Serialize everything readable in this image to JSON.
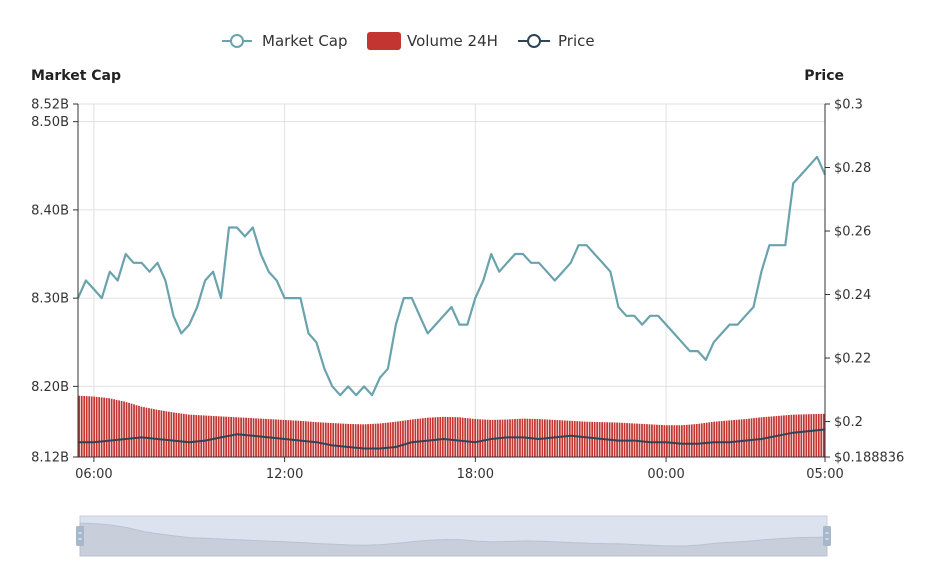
{
  "chart_data": {
    "type": "line",
    "legend": {
      "placement": "top-center",
      "items": [
        {
          "name": "Market Cap",
          "color": "#6aa3ad",
          "marker": "line-circle"
        },
        {
          "name": "Volume 24H",
          "color": "#c23531",
          "marker": "rect"
        },
        {
          "name": "Price",
          "color": "#2f4554",
          "marker": "line-circle"
        }
      ]
    },
    "left_axis": {
      "title": "Market Cap",
      "ylim": [
        8.12,
        8.52
      ],
      "ticks": [
        {
          "value": 8.12,
          "label": "8.12B"
        },
        {
          "value": 8.2,
          "label": "8.20B"
        },
        {
          "value": 8.3,
          "label": "8.30B"
        },
        {
          "value": 8.4,
          "label": "8.40B"
        },
        {
          "value": 8.5,
          "label": "8.50B"
        },
        {
          "value": 8.52,
          "label": "8.52B"
        }
      ]
    },
    "right_axis": {
      "title": "Price",
      "ylim": [
        0.188836,
        0.3
      ],
      "ticks": [
        {
          "value": 0.188836,
          "label": "$0.188836"
        },
        {
          "value": 0.2,
          "label": "$0.2"
        },
        {
          "value": 0.22,
          "label": "$0.22"
        },
        {
          "value": 0.24,
          "label": "$0.24"
        },
        {
          "value": 0.26,
          "label": "$0.26"
        },
        {
          "value": 0.28,
          "label": "$0.28"
        },
        {
          "value": 0.3,
          "label": "$0.3"
        }
      ]
    },
    "x_axis": {
      "range_hours": [
        5.5,
        29.0
      ],
      "ticks": [
        {
          "value": 6,
          "label": "06:00"
        },
        {
          "value": 12,
          "label": "12:00"
        },
        {
          "value": 18,
          "label": "18:00"
        },
        {
          "value": 24,
          "label": "00:00"
        },
        {
          "value": 29,
          "label": "05:00"
        }
      ]
    },
    "grid": true,
    "series": [
      {
        "name": "Market Cap",
        "axis": "left",
        "color": "#6aa3ad",
        "x": [
          5.5,
          5.75,
          6.0,
          6.25,
          6.5,
          6.75,
          7.0,
          7.25,
          7.5,
          7.75,
          8.0,
          8.25,
          8.5,
          8.75,
          9.0,
          9.25,
          9.5,
          9.75,
          10.0,
          10.25,
          10.5,
          10.75,
          11.0,
          11.25,
          11.5,
          11.75,
          12.0,
          12.25,
          12.5,
          12.75,
          13.0,
          13.25,
          13.5,
          13.75,
          14.0,
          14.25,
          14.5,
          14.75,
          15.0,
          15.25,
          15.5,
          15.75,
          16.0,
          16.25,
          16.5,
          16.75,
          17.0,
          17.25,
          17.5,
          17.75,
          18.0,
          18.25,
          18.5,
          18.75,
          19.0,
          19.25,
          19.5,
          19.75,
          20.0,
          20.25,
          20.5,
          20.75,
          21.0,
          21.25,
          21.5,
          21.75,
          22.0,
          22.25,
          22.5,
          22.75,
          23.0,
          23.25,
          23.5,
          23.75,
          24.0,
          24.25,
          24.5,
          24.75,
          25.0,
          25.25,
          25.5,
          25.75,
          26.0,
          26.25,
          26.5,
          26.75,
          27.0,
          27.25,
          27.5,
          27.75,
          28.0,
          28.25,
          28.5,
          28.75,
          29.0
        ],
        "values": [
          8.3,
          8.32,
          8.31,
          8.3,
          8.33,
          8.32,
          8.35,
          8.34,
          8.34,
          8.33,
          8.34,
          8.32,
          8.28,
          8.26,
          8.27,
          8.29,
          8.32,
          8.33,
          8.3,
          8.38,
          8.38,
          8.37,
          8.38,
          8.35,
          8.33,
          8.32,
          8.3,
          8.3,
          8.3,
          8.26,
          8.25,
          8.22,
          8.2,
          8.19,
          8.2,
          8.19,
          8.2,
          8.19,
          8.21,
          8.22,
          8.27,
          8.3,
          8.3,
          8.28,
          8.26,
          8.27,
          8.28,
          8.29,
          8.27,
          8.27,
          8.3,
          8.32,
          8.35,
          8.33,
          8.34,
          8.35,
          8.35,
          8.34,
          8.34,
          8.33,
          8.32,
          8.33,
          8.34,
          8.36,
          8.36,
          8.35,
          8.34,
          8.33,
          8.29,
          8.28,
          8.28,
          8.27,
          8.28,
          8.28,
          8.27,
          8.26,
          8.25,
          8.24,
          8.24,
          8.23,
          8.25,
          8.26,
          8.27,
          8.27,
          8.28,
          8.29,
          8.33,
          8.36,
          8.36,
          8.36,
          8.43,
          8.44,
          8.45,
          8.46,
          8.44
        ]
      },
      {
        "name": "Price",
        "axis": "right",
        "color": "#2f4554",
        "x": [
          5.5,
          6.0,
          6.5,
          7.0,
          7.5,
          8.0,
          8.5,
          9.0,
          9.5,
          10.0,
          10.5,
          11.0,
          11.5,
          12.0,
          12.5,
          13.0,
          13.5,
          14.0,
          14.5,
          15.0,
          15.5,
          16.0,
          16.5,
          17.0,
          17.5,
          18.0,
          18.5,
          19.0,
          19.5,
          20.0,
          20.5,
          21.0,
          21.5,
          22.0,
          22.5,
          23.0,
          23.5,
          24.0,
          24.5,
          25.0,
          25.5,
          26.0,
          26.5,
          27.0,
          27.5,
          28.0,
          28.5,
          29.0
        ],
        "values": [
          0.1935,
          0.1935,
          0.194,
          0.1945,
          0.195,
          0.1945,
          0.194,
          0.1935,
          0.194,
          0.195,
          0.196,
          0.1955,
          0.195,
          0.1945,
          0.194,
          0.1935,
          0.1925,
          0.192,
          0.1915,
          0.1915,
          0.192,
          0.1935,
          0.194,
          0.1945,
          0.194,
          0.1935,
          0.1945,
          0.195,
          0.195,
          0.1945,
          0.195,
          0.1955,
          0.195,
          0.1945,
          0.194,
          0.194,
          0.1935,
          0.1935,
          0.193,
          0.193,
          0.1935,
          0.1935,
          0.194,
          0.1945,
          0.1955,
          0.1965,
          0.197,
          0.1975
        ]
      },
      {
        "name": "Volume 24H",
        "type": "bar",
        "axis": "left",
        "color": "#c23531",
        "x": [
          5.5,
          6.0,
          6.5,
          7.0,
          7.5,
          8.0,
          8.5,
          9.0,
          9.5,
          10.0,
          10.5,
          11.0,
          11.5,
          12.0,
          12.5,
          13.0,
          13.5,
          14.0,
          14.5,
          15.0,
          15.5,
          16.0,
          16.5,
          17.0,
          17.5,
          18.0,
          18.5,
          19.0,
          19.5,
          20.0,
          20.5,
          21.0,
          21.5,
          22.0,
          22.5,
          23.0,
          23.5,
          24.0,
          24.5,
          25.0,
          25.5,
          26.0,
          26.5,
          27.0,
          27.5,
          28.0,
          28.5,
          29.0
        ],
        "values": [
          8.1895,
          8.1885,
          8.1865,
          8.1825,
          8.177,
          8.1735,
          8.1705,
          8.168,
          8.167,
          8.166,
          8.165,
          8.164,
          8.163,
          8.162,
          8.161,
          8.1595,
          8.1585,
          8.1575,
          8.157,
          8.158,
          8.16,
          8.1625,
          8.1645,
          8.1655,
          8.165,
          8.163,
          8.162,
          8.1625,
          8.1635,
          8.163,
          8.162,
          8.161,
          8.16,
          8.1595,
          8.159,
          8.158,
          8.157,
          8.156,
          8.156,
          8.1575,
          8.16,
          8.1615,
          8.163,
          8.165,
          8.1665,
          8.168,
          8.1685,
          8.169
        ]
      }
    ]
  },
  "data_zoom": {
    "start": 0,
    "end": 100
  }
}
